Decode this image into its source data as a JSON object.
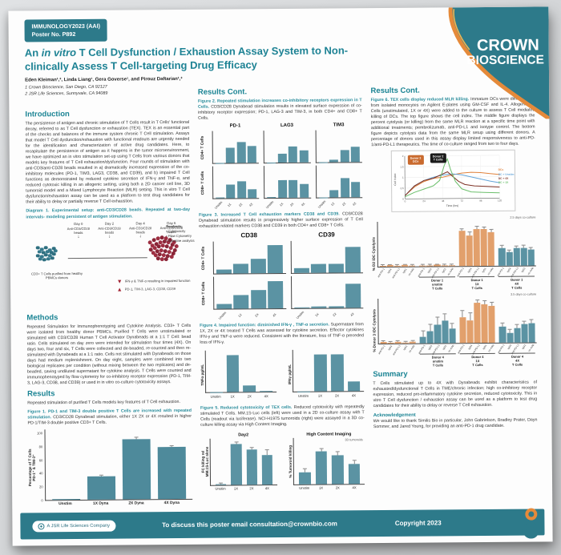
{
  "colors": {
    "teal_brand": "#2d7a8a",
    "heading_teal": "#1b8494",
    "caption_teal": "#2a8d9c",
    "bar_teal": "#5b93a3",
    "bar_orange": "#e2a06c",
    "accent_orange": "#e58a3a",
    "cluster_teal": "#2e6f80",
    "cluster_red": "#9e2f42"
  },
  "header": {
    "badge": {
      "line1": "IMMUNOLOGY2023 (AAI)",
      "line2": "Poster No. P892"
    },
    "logo": {
      "line1": "CROWN",
      "line2": "BIOSCIENCE"
    },
    "title": {
      "pre": "An ",
      "italic": "in vitro",
      "post": " T Cell Dysfunction / Exhaustion Assay System to Non-clinically Assess T Cell-targeting Drug Efficacy"
    },
    "authors": "Eden Kleiman¹,², Linda Liang¹, Gera Goverse¹, and Pirouz Daftarian¹,²",
    "affiliation1": "1 Crown Bioscience, San Diego, CA 92127",
    "affiliation2": "2 JSR Life Sciences, Sunnyvale, CA 94089"
  },
  "sections": {
    "introduction": {
      "heading": "Introduction",
      "body": "The persistence of antigen and chronic stimulation of T Cells result in T Cells' functional decay, referred to as T Cell dysfunction or exhaustion (TEX). TEX is an essential part of the checks and balances of the immune system chronic T Cell stimulation. Assays that model T Cell dysfunction/exhaustion with functional readouts are urgently needed for the identification and characterization of active drug candidates. Here, to recapitulate the persistence of antigen as it happens in the tumor microenvironment, we have optimized an in vitro stimulation set-up using T Cells from various donors that models key features of T Cell exhaustion/dysfunction. Four rounds of stimulation with anti-CD3/anti-CD28 beads resulted in a) dramatically increased expression of the co-inhibitory molecules (PD-1, TIM3, LAG3, CD38, and CD39), and b) impaired T Cell functions as demonstrated by reduced cytokine secretion of IFN-γ and TNF-α, and reduced cytotoxic killing in an allogenic setting, using both a 2D cancer cell line, 3D tumoroid model and a Mixed Lymphocyte Reaction (MLR) setting. This in vitro T Cell dysfunction/exhaustion assay can be used as a platform to test drug candidates for their ability to delay or partially reverse T Cell exhaustion."
    },
    "methods": {
      "heading": "Methods",
      "body": "Repeated Stimulation for Immunophenotyping and Cytokine Analysis. CD3+ T Cells were isolated from healthy donor PBMCs. Purified T Cells were unstimulated or stimulated with CD3/CD28 Human T Cell Activator Dynabeads at a 1:1 T Cell: bead ratio. Cells stimulated on day zero were intended for stimulation four times (4X). On days two, four and six, T Cells were collected and de-beaded, re-counted and then re-stimulated with Dynabeads at a 1:1 ratio. Cells not stimulated with Dynabeads on those days had medium replenishment. On day eight, samples were combined into two biological replicates per condition (without mixing between the two replicates) and de-beaded, saving undiluted supernatant for cytokine analysis. T Cells were counted and immunophenotyped by flow cytometry for co-inhibitory receptor expression (PD-1, TIM-3, LAG-3, CD38, and CD39) or used in in vitro co-culture cytotoxicity assays."
    },
    "results": {
      "heading": "Results",
      "body": "Repeated stimulation of purified T Cells models key features of T Cell exhaustion."
    },
    "results_cont_mid": {
      "heading": "Results Cont."
    },
    "results_cont_right": {
      "heading": "Results Cont."
    },
    "summary": {
      "heading": "Summary",
      "body": "T Cells stimulated up to 4X with Dynabeads exhibit characteristics of exhausted/dysfunctional T Cells in TME/chronic infection; high co-inhibitory receptor expression, reduced pro-inflammatory cytokine secretion, reduced cytotoxicity. This in vitro T Cell dysfunction / exhaustion assay can be used as a platform to test drug candidates for their ability to delay or reverse T Cell exhaustion."
    },
    "acknowledgement": {
      "heading": "Acknowledgement",
      "body": "We would like to thank Similis Bio in particular, John Gabrielson, Bradley Prater, Dayn Sommer, and Jared Young, for providing an anti-PD-1 drug candidate."
    }
  },
  "diagram": {
    "caption": "Diagram 1. Experimental setup: anti-CD3/CD28 beads. Repeated at two-day intervals- modeling persistent of antigen stimulation.",
    "days": [
      "Day 0",
      "Day 2",
      "Day 4",
      "Day 6"
    ],
    "bead_label": "Anti-CD3/CD28 beads",
    "left_cluster_label": "CD3+ T Cells purified from healthy PBMCs donors",
    "readouts_title": "Readouts:",
    "readouts": [
      "Cytotoxicity",
      "Flow Cytometry",
      "Cytokine analysis"
    ],
    "down_arrow_label": "IFN-γ & TNF-α resulting in impaired function",
    "up_arrow_label": "PD-1, TIM-3, LAG-3, CD38, CD39"
  },
  "figures": {
    "fig1": {
      "lead": "Figure 1. PD-1 and TIM-3 double positive T Cells are increased with repeated stimulation. ",
      "rest": "CD3/CD28 Dynabead stimulation, either 1X 2X or 4X resulted in higher PD-1/TIM-3 double positive CD3+ T Cells."
    },
    "fig2": {
      "lead": "Figure 2. Repeated stimulation increases co-inhibitory receptors expression in T Cells. ",
      "rest": "CD3/CD28 Dynabead stimulation results in elevated surface expression of co-inhibitory receptor expression; PD-1, LAG-3 and TIM-3, in both CD4+ and CD8+ T Cells."
    },
    "fig3": {
      "lead": "Figure 3. Increased T Cell exhaustion markers CD38 and CD39. ",
      "rest": "CD3/CD28 Dynabead stimulation results in progressively higher surface expression of T Cell exhaustion related markers CD38 and CD39 in both CD4+ and CD8+ T Cells."
    },
    "fig4": {
      "lead": "Figure 4. Impaired function: diminished IFN-γ , TNF-α secretion. ",
      "rest": "Supernatant from 1X, 2X or 4X treated T Cells was assessed for cytokine secretion. Effector cytokines IFN-γ and TNF-α were reduced. Consistent with the literature, loss of TNF-α preceded loss of IFN-γ."
    },
    "fig5": {
      "lead": "Figure 5. Reduced cytotoxicity of TEX cells. ",
      "rest": "Reduced cytotoxicity with repeatedly stimulated T Cells. MM.1S-Luc cells (left) were used in a 2D co-culture assay with T Cells (readout via luciferase). NCI-H1975 tumoroids (right) were assayed in a 3D co-culture killing assay via High Content Imaging."
    },
    "fig6": {
      "lead": "Figure 6. TEX cells display reduced MLR killing. ",
      "rest": "Immature DCs were differentiated from isolated monocytes on Agilent E-plates using GM-CSF and IL-4. Allogeneic T Cells (unstimulated, 1X or 4X) were added to the culture to assess T Cell mediated killing of DCs. The top figure shows the cell index. The middle figure displays the percent cytolysis (or killing) from the same MLR reaction at a specific time point with additional treatments; pembrolizumab, anti-PD-L1 and isotype control. The bottom figure depicts cytolysis data from the same MLR setup using different donors. A percentage of donors used in this assay display limited responsiveness to anti-PD-1/anti-PD-L1 therapeutics. The time of co-culture ranged from two to four days."
    }
  },
  "chart_data": {
    "fig1": {
      "type": "bar",
      "big": true,
      "h": 88,
      "gap": 9,
      "pad": 8,
      "ylabel": "Percentage of T Cells",
      "ylabel2": "PD-1⁺ & TIM-3⁺",
      "categories": [
        "Unstim",
        "1X Dyna",
        "2X Dyna",
        "4X Dyna"
      ],
      "values": [
        0.5,
        33,
        85,
        74
      ],
      "err": [
        0,
        1,
        2,
        1
      ],
      "ylim": [
        0,
        100
      ],
      "yticks": [
        0,
        20,
        40,
        60,
        80,
        100
      ],
      "color": "#4e8a9b"
    },
    "fig2": {
      "type": "grid",
      "col_titles": [
        "PD-1",
        "LAG3",
        "TIM3"
      ],
      "row_labels": [
        "CD4+ T Cells",
        "CD8+ T Cells"
      ],
      "categories": [
        "Unstim",
        "1X",
        "2X",
        "4X"
      ],
      "ylim": [
        0,
        100
      ],
      "color": "#5b93a3",
      "values": [
        [
          [
            1,
            48,
            66,
            52
          ],
          [
            4,
            42,
            52,
            28
          ]
        ],
        [
          [
            1,
            28,
            50,
            38
          ],
          [
            2,
            55,
            56,
            42
          ]
        ],
        [
          [
            1,
            9,
            38,
            48
          ],
          [
            1,
            22,
            60,
            47
          ]
        ]
      ]
    },
    "fig3": {
      "type": "grid",
      "title_size": "lg",
      "col_titles": [
        "CD38",
        "CD39"
      ],
      "row_labels": [
        "CD4+ T Cells",
        "CD8+ T Cells"
      ],
      "categories": [
        "Unstim",
        "1X",
        "2X",
        "4X"
      ],
      "ylim": [
        0,
        100
      ],
      "color": "#5b93a3",
      "values": [
        [
          [
            12,
            30,
            45,
            88
          ],
          [
            15,
            42,
            58,
            85
          ]
        ],
        [
          [
            15,
            28,
            28,
            80
          ],
          [
            2,
            5,
            5,
            75
          ]
        ]
      ]
    },
    "fig4a": {
      "type": "bar",
      "h": 52,
      "gap": 5,
      "pad": 5,
      "ylabel": "TNFα pg/mL",
      "categories": [
        "Unstim",
        "1X",
        "2X",
        "4X"
      ],
      "values": [
        1,
        90,
        16,
        3
      ],
      "ylim": [
        0,
        100
      ],
      "color": "#5b93a3"
    },
    "fig4b": {
      "type": "bar",
      "h": 52,
      "gap": 5,
      "pad": 5,
      "ylabel": "IFNγ pg/mL",
      "categories": [
        "Unstim",
        "1X",
        "2X",
        "4X"
      ],
      "values": [
        1,
        90,
        90,
        24
      ],
      "ylim": [
        0,
        100
      ],
      "color": "#5b93a3"
    },
    "fig5a": {
      "type": "bar",
      "h": 58,
      "gap": 6,
      "pad": 6,
      "title": "Day2",
      "ylabel": "FC killing rel",
      "ylabel2": "MM.1S-Luc alone",
      "categories": [
        "Unstim",
        "1X",
        "2X",
        "4X"
      ],
      "values": [
        0.2,
        8.8,
        7.6,
        6.3
      ],
      "err": [
        0.1,
        0.4,
        0.35,
        1.1
      ],
      "ylim": [
        0,
        10
      ],
      "color": "#5b93a3"
    },
    "fig5b": {
      "type": "bar",
      "h": 58,
      "gap": 6,
      "pad": 6,
      "title": "High Content Imaging",
      "note": "3D tumoroids",
      "ylabel": "% Tumoroid killing",
      "categories": [
        "Unstim",
        "1X",
        "2X",
        "4X"
      ],
      "values": [
        20,
        57,
        50,
        35
      ],
      "err": [
        6,
        4,
        5,
        5
      ],
      "ylim": [
        0,
        80
      ],
      "color": "#5b93a3"
    },
    "fig6line": {
      "type": "line",
      "xlabel": "Time (hrs)",
      "ylabel": "Cell Index",
      "xlim": [
        0,
        120
      ],
      "ylim": [
        0,
        2
      ],
      "xticks": [
        0,
        24,
        48,
        72,
        96,
        120
      ],
      "yticks": [
        0,
        0.5,
        1,
        1.5,
        2
      ],
      "annotations": [
        {
          "text": "Donor 2|DCs",
          "color": "#c96a2e",
          "x": 20,
          "y": 5
        },
        {
          "text": "Donor 2|T Cells",
          "color": "#1a1a1a",
          "x": 48,
          "y": 3
        }
      ],
      "series": [
        {
          "name": "DCs",
          "color": "#e0823c",
          "points": [
            [
              0,
              0.15
            ],
            [
              12,
              0.55
            ],
            [
              24,
              0.8
            ],
            [
              36,
              0.95
            ],
            [
              48,
              1.0
            ],
            [
              60,
              1.1
            ],
            [
              72,
              1.18
            ],
            [
              84,
              1.22
            ],
            [
              96,
              1.2
            ],
            [
              108,
              1.15
            ],
            [
              120,
              1.1
            ]
          ]
        },
        {
          "name": "DC + Unstim",
          "color": "#63a4d8",
          "points": [
            [
              0,
              0.15
            ],
            [
              12,
              0.6
            ],
            [
              24,
              0.85
            ],
            [
              36,
              1.0
            ],
            [
              48,
              1.1
            ],
            [
              60,
              1.15
            ],
            [
              72,
              1.1
            ],
            [
              84,
              1.0
            ],
            [
              96,
              0.9
            ],
            [
              108,
              0.8
            ],
            [
              120,
              0.72
            ]
          ]
        },
        {
          "name": "DC + 4X",
          "color": "#7c3124",
          "points": [
            [
              0,
              0.15
            ],
            [
              12,
              0.6
            ],
            [
              24,
              0.85
            ],
            [
              36,
              0.95
            ],
            [
              48,
              1.15
            ],
            [
              54,
              1.25
            ],
            [
              60,
              1.05
            ],
            [
              68,
              0.8
            ],
            [
              76,
              0.65
            ],
            [
              88,
              0.58
            ],
            [
              104,
              0.55
            ],
            [
              120,
              0.52
            ]
          ]
        },
        {
          "name": "DC + 1X",
          "color": "#6cbf6c",
          "points": [
            [
              0,
              0.1
            ],
            [
              12,
              0.3
            ],
            [
              24,
              0.45
            ],
            [
              36,
              0.6
            ],
            [
              44,
              0.85
            ],
            [
              50,
              1.55
            ],
            [
              54,
              1.85
            ],
            [
              58,
              1.35
            ],
            [
              64,
              0.8
            ],
            [
              72,
              0.45
            ],
            [
              84,
              0.3
            ],
            [
              100,
              0.27
            ],
            [
              120,
              0.25
            ]
          ]
        }
      ]
    },
    "fig6barA": {
      "type": "group",
      "note": "2.5 days co-culture",
      "ylabel": "% D2  iDC Cytolysis",
      "ylim": [
        0,
        70
      ],
      "treatments": [
        "anti-PD-1",
        "IgG4",
        "anti-PD-L1",
        "IgG1",
        "no mAb"
      ],
      "groups": [
        {
          "label": "",
          "color": "#e2a06c",
          "values": [
            1,
            2,
            1,
            2,
            1
          ],
          "err": [
            1,
            1,
            1,
            1,
            1
          ]
        },
        {
          "label": "Donor 1|unstim|T Cells",
          "color": "#e2a06c",
          "values": [
            1,
            1,
            2,
            1,
            1
          ],
          "err": [
            1,
            1,
            1,
            1,
            1
          ]
        },
        {
          "label": "Donor 1|1X|T Cells",
          "color": "#e2a06c",
          "values": [
            55,
            47,
            58,
            57,
            53
          ],
          "err": [
            3,
            6,
            3,
            3,
            3
          ]
        },
        {
          "label": "Donor 1|4X|T Cells",
          "color": "#5b93a3",
          "values": [
            28,
            21,
            27,
            28,
            25
          ],
          "err": [
            3,
            3,
            3,
            3,
            3
          ]
        }
      ]
    },
    "fig6barB": {
      "type": "group",
      "note": "3.5 days co-culture",
      "ylabel": "% Donor 3 iDC Cytolysis",
      "ylim": [
        0,
        70
      ],
      "treatments": [
        "anti-PD-1",
        "IgG4",
        "anti-PD-L1",
        "IgG1",
        "no mAb"
      ],
      "groups": [
        {
          "label": "",
          "color": "#e2a06c",
          "values": [
            2,
            1,
            2,
            1,
            2
          ],
          "err": [
            1,
            1,
            1,
            1,
            1
          ]
        },
        {
          "label": "Donor 4|unstim|T Cells",
          "color": "#5b93a3",
          "values": [
            10,
            18,
            28,
            35,
            22
          ],
          "err": [
            8,
            10,
            12,
            9,
            8
          ]
        },
        {
          "label": "Donor 4|1X|T Cells",
          "color": "#e2a06c",
          "values": [
            40,
            35,
            62,
            60,
            57
          ],
          "err": [
            9,
            11,
            4,
            4,
            5
          ]
        },
        {
          "label": "Donor 4|4X|T Cells",
          "color": "#5b93a3",
          "values": [
            25,
            15,
            22,
            28,
            30
          ],
          "err": [
            4,
            4,
            5,
            4,
            5
          ]
        }
      ]
    }
  },
  "footer": {
    "company": "A JSR Life Sciences Company",
    "contact": "To discuss this poster email consultation@crownbio.com",
    "copyright": "Copyright 2023"
  }
}
